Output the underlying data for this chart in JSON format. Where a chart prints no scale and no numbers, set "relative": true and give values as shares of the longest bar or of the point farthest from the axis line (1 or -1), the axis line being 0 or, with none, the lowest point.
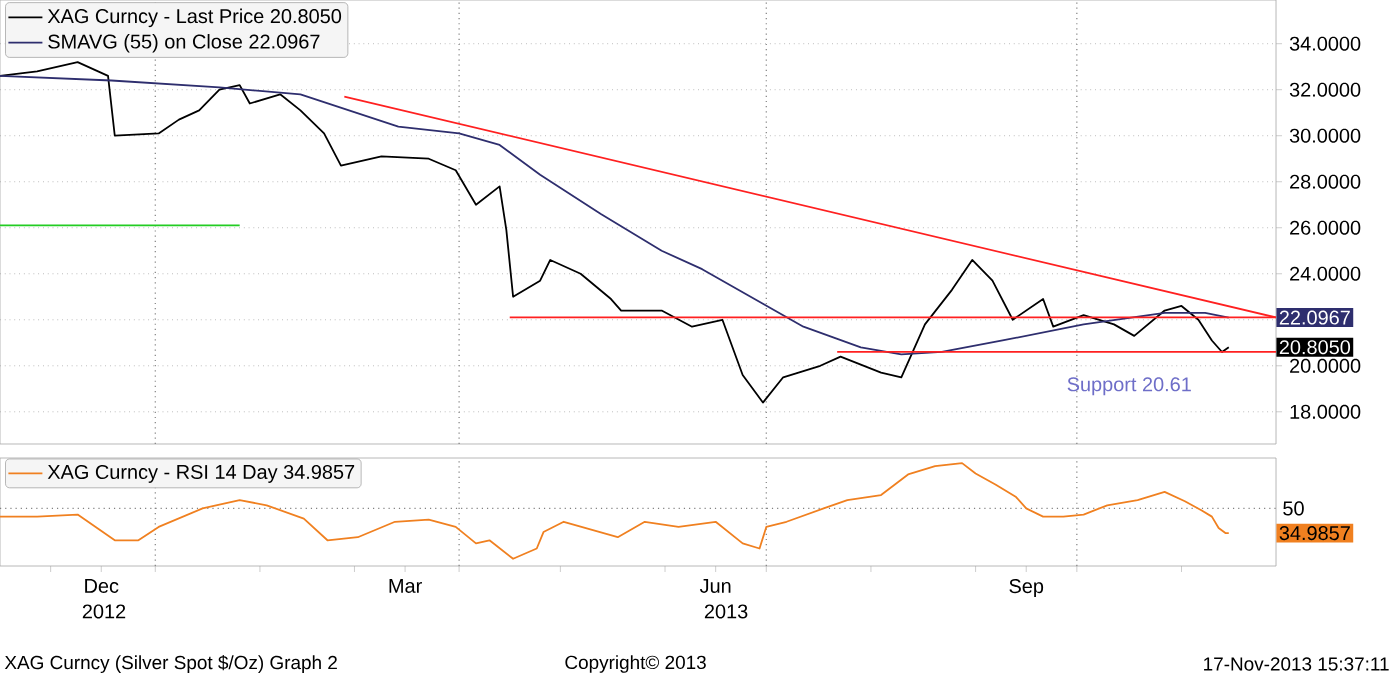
{
  "chart_data": [
    {
      "type": "line",
      "xlim": [
        "2012-11-16",
        "2013-11-29"
      ],
      "ylim": [
        16.6,
        35.9
      ],
      "yticks": [
        {
          "value": 18,
          "label": "18.0000"
        },
        {
          "value": 20,
          "label": "20.0000"
        },
        {
          "value": 22,
          "label": null
        },
        {
          "value": 24,
          "label": "24.0000"
        },
        {
          "value": 26,
          "label": "26.0000"
        },
        {
          "value": 28,
          "label": "28.0000"
        },
        {
          "value": 30,
          "label": "30.0000"
        },
        {
          "value": 32,
          "label": "32.0000"
        },
        {
          "value": 34,
          "label": "34.0000"
        }
      ],
      "grid": "y",
      "legend": "top left",
      "tick_labels": "y",
      "series": [
        {
          "name": "XAG Curncy - Last Price 20.8050",
          "color": "#000000",
          "x": [
            "2012-11-16",
            "2012-11-27",
            "2012-12-09",
            "2012-12-18",
            "2012-12-20",
            "2013-01-02",
            "2013-01-08",
            "2013-01-14",
            "2013-01-20",
            "2013-01-26",
            "2013-01-29",
            "2013-02-07",
            "2013-02-13",
            "2013-02-20",
            "2013-02-25",
            "2013-03-09",
            "2013-03-23",
            "2013-03-31",
            "2013-04-06",
            "2013-04-13",
            "2013-04-15",
            "2013-04-17",
            "2013-04-25",
            "2013-04-28",
            "2013-05-07",
            "2013-05-16",
            "2013-05-19",
            "2013-05-31",
            "2013-06-09",
            "2013-06-18",
            "2013-06-24",
            "2013-06-30",
            "2013-07-06",
            "2013-07-17",
            "2013-07-23",
            "2013-08-04",
            "2013-08-10",
            "2013-08-17",
            "2013-08-25",
            "2013-08-31",
            "2013-09-06",
            "2013-09-12",
            "2013-09-21",
            "2013-09-24",
            "2013-10-03",
            "2013-10-12",
            "2013-10-18",
            "2013-10-27",
            "2013-11-01",
            "2013-11-06",
            "2013-11-10",
            "2013-11-13",
            "2013-11-15"
          ],
          "values": [
            32.6,
            32.8,
            33.2,
            32.6,
            30.0,
            30.1,
            30.7,
            31.1,
            32.0,
            32.2,
            31.4,
            31.8,
            31.1,
            30.1,
            28.7,
            29.1,
            29.0,
            28.5,
            27.0,
            27.8,
            25.9,
            23.0,
            23.7,
            24.6,
            24.0,
            22.9,
            22.4,
            22.4,
            21.7,
            22.0,
            19.6,
            18.4,
            19.5,
            20.0,
            20.4,
            19.7,
            19.5,
            21.8,
            23.3,
            24.6,
            23.7,
            22.0,
            22.9,
            21.7,
            22.2,
            21.8,
            21.3,
            22.4,
            22.6,
            22.0,
            21.1,
            20.6,
            20.805
          ]
        },
        {
          "name": "SMAVG (55) on Close 22.0967",
          "color": "#2e2e6e",
          "x": [
            "2012-11-16",
            "2012-12-19",
            "2013-01-20",
            "2013-02-13",
            "2013-03-14",
            "2013-04-01",
            "2013-04-13",
            "2013-04-25",
            "2013-05-13",
            "2013-05-31",
            "2013-06-12",
            "2013-06-30",
            "2013-07-12",
            "2013-07-29",
            "2013-08-10",
            "2013-08-22",
            "2013-09-09",
            "2013-10-03",
            "2013-10-27",
            "2013-11-08",
            "2013-11-15"
          ],
          "values": [
            32.6,
            32.4,
            32.1,
            31.8,
            30.4,
            30.1,
            29.6,
            28.3,
            26.6,
            25.0,
            24.2,
            22.7,
            21.7,
            20.8,
            20.5,
            20.6,
            21.1,
            21.8,
            22.3,
            22.3,
            22.0967
          ]
        },
        {
          "color": "#ff2020",
          "x": [
            "2013-02-26",
            "2013-11-29"
          ],
          "values": [
            31.7,
            22.1
          ]
        },
        {
          "color": "#ff2020",
          "x": [
            "2013-04-16",
            "2013-11-29"
          ],
          "values": [
            22.1,
            22.1
          ]
        },
        {
          "color": "#ff2020",
          "x": [
            "2013-07-22",
            "2013-11-29"
          ],
          "values": [
            20.6,
            20.6
          ]
        },
        {
          "color": "#22cc22",
          "x": [
            "2012-11-16",
            "2013-01-26"
          ],
          "values": [
            26.1,
            26.1
          ]
        }
      ],
      "ref_lines": [
        {
          "axis": "x",
          "value": "2013-01-01",
          "color": "#808080",
          "line_style": "dotted"
        },
        {
          "axis": "x",
          "value": "2013-04-01",
          "color": "#808080",
          "line_style": "dotted"
        },
        {
          "axis": "x",
          "value": "2013-07-01",
          "color": "#808080",
          "line_style": "dotted"
        },
        {
          "axis": "x",
          "value": "2013-10-01",
          "color": "#808080",
          "line_style": "dotted"
        }
      ],
      "annotations": [
        "Support 20.61",
        "22.0967",
        "20.8050"
      ]
    },
    {
      "type": "line",
      "xlim": [
        "2012-11-16",
        "2013-11-29"
      ],
      "relative": true,
      "xticks": [
        {
          "value": "2012-12-01",
          "label": null
        },
        {
          "value": "2012-12-16",
          "label": "Dec"
        },
        {
          "value": "2013-01-01",
          "label": null
        },
        {
          "value": "2013-02-01",
          "label": null
        },
        {
          "value": "2013-03-01",
          "label": null
        },
        {
          "value": "2013-03-16",
          "label": "Mar"
        },
        {
          "value": "2013-04-01",
          "label": null
        },
        {
          "value": "2013-05-01",
          "label": null
        },
        {
          "value": "2013-06-01",
          "label": null
        },
        {
          "value": "2013-06-16",
          "label": "Jun"
        },
        {
          "value": "2013-07-01",
          "label": null
        },
        {
          "value": "2013-08-01",
          "label": null
        },
        {
          "value": "2013-09-01",
          "label": null
        },
        {
          "value": "2013-09-16",
          "label": "Sep"
        },
        {
          "value": "2013-10-01",
          "label": null
        },
        {
          "value": "2013-11-01",
          "label": null
        }
      ],
      "legend": "top left",
      "series": [
        {
          "name": "XAG Curncy - RSI 14 Day 34.9857",
          "color": "#f08020",
          "x": [
            "2012-11-16",
            "2012-11-27",
            "2012-12-09",
            "2012-12-20",
            "2012-12-27",
            "2013-01-02",
            "2013-01-15",
            "2013-01-26",
            "2013-02-03",
            "2013-02-14",
            "2013-02-21",
            "2013-03-02",
            "2013-03-13",
            "2013-03-23",
            "2013-03-31",
            "2013-04-06",
            "2013-04-10",
            "2013-04-17",
            "2013-04-24",
            "2013-04-26",
            "2013-05-02",
            "2013-05-18",
            "2013-05-26",
            "2013-06-05",
            "2013-06-16",
            "2013-06-24",
            "2013-06-29",
            "2013-07-01",
            "2013-07-07",
            "2013-07-18",
            "2013-07-25",
            "2013-08-04",
            "2013-08-12",
            "2013-08-20",
            "2013-08-28",
            "2013-09-01",
            "2013-09-07",
            "2013-09-13",
            "2013-09-16",
            "2013-09-21",
            "2013-09-27",
            "2013-10-03",
            "2013-10-10",
            "2013-10-19",
            "2013-10-27",
            "2013-11-02",
            "2013-11-07",
            "2013-11-10",
            "2013-11-12",
            "2013-11-14",
            "2013-11-15"
          ],
          "values": [
            0.48,
            0.48,
            0.5,
            0.25,
            0.25,
            0.38,
            0.56,
            0.64,
            0.59,
            0.46,
            0.25,
            0.28,
            0.43,
            0.45,
            0.38,
            0.22,
            0.25,
            0.07,
            0.17,
            0.33,
            0.43,
            0.28,
            0.43,
            0.38,
            0.43,
            0.22,
            0.17,
            0.38,
            0.43,
            0.56,
            0.64,
            0.69,
            0.89,
            0.97,
            1,
            0.9,
            0.79,
            0.67,
            0.56,
            0.48,
            0.48,
            0.5,
            0.59,
            0.64,
            0.72,
            0.63,
            0.54,
            0.48,
            0.37,
            0.32,
            0.32
          ]
        }
      ],
      "ref_lines": [
        {
          "axis": "y",
          "value": 0.56,
          "color": "#808080",
          "line_style": "dotted"
        },
        {
          "axis": "x",
          "value": "2013-01-01",
          "color": "#808080",
          "line_style": "dotted"
        },
        {
          "axis": "x",
          "value": "2013-04-01",
          "color": "#808080",
          "line_style": "dotted"
        },
        {
          "axis": "x",
          "value": "2013-07-01",
          "color": "#808080",
          "line_style": "dotted"
        },
        {
          "axis": "x",
          "value": "2013-10-01",
          "color": "#808080",
          "line_style": "dotted"
        }
      ],
      "annotations": [
        "2012",
        "2013",
        "50",
        "34.9857",
        "XAG Curncy (Silver Spot  $/Oz) Graph 2",
        "Copyright© 2013",
        "17-Nov-2013 15:37:11"
      ]
    }
  ]
}
